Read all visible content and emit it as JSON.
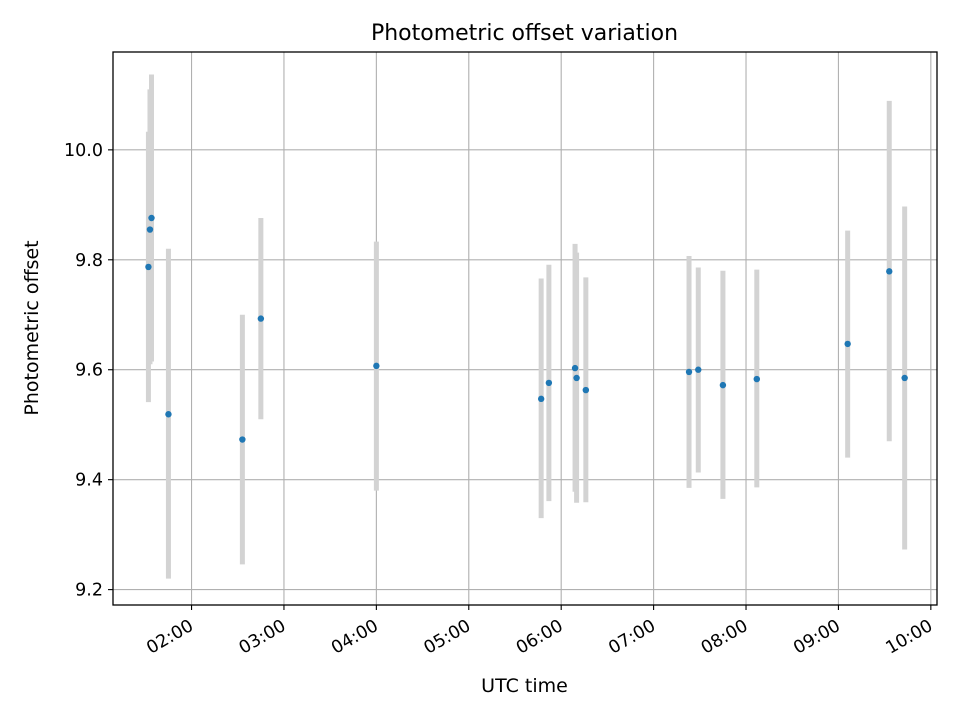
{
  "chart_data": {
    "type": "scatter",
    "title": "Photometric offset variation",
    "xlabel": "UTC time",
    "ylabel": "Photometric offset",
    "xlim": [
      "01:09",
      "10:04"
    ],
    "ylim": [
      9.172,
      10.178
    ],
    "x_ticks": [
      "02:00",
      "03:00",
      "04:00",
      "05:00",
      "06:00",
      "07:00",
      "08:00",
      "09:00",
      "10:00"
    ],
    "y_ticks": [
      "9.2",
      "9.4",
      "9.6",
      "9.8",
      "10.0"
    ],
    "grid": true,
    "point_color": "#1f77b4",
    "errorbar_color": "#d3d3d3",
    "points": [
      {
        "time": "01:32",
        "y": 9.787,
        "yerr_low": 9.541,
        "yerr_high": 10.033
      },
      {
        "time": "01:33",
        "y": 9.855,
        "yerr_low": 9.61,
        "yerr_high": 10.11
      },
      {
        "time": "01:34",
        "y": 9.876,
        "yerr_low": 9.615,
        "yerr_high": 10.137
      },
      {
        "time": "01:45",
        "y": 9.519,
        "yerr_low": 9.22,
        "yerr_high": 9.82
      },
      {
        "time": "02:33",
        "y": 9.473,
        "yerr_low": 9.246,
        "yerr_high": 9.7
      },
      {
        "time": "02:45",
        "y": 9.693,
        "yerr_low": 9.51,
        "yerr_high": 9.876
      },
      {
        "time": "04:00",
        "y": 9.607,
        "yerr_low": 9.38,
        "yerr_high": 9.833
      },
      {
        "time": "05:47",
        "y": 9.547,
        "yerr_low": 9.33,
        "yerr_high": 9.766
      },
      {
        "time": "05:52",
        "y": 9.576,
        "yerr_low": 9.361,
        "yerr_high": 9.791
      },
      {
        "time": "06:09",
        "y": 9.603,
        "yerr_low": 9.378,
        "yerr_high": 9.829
      },
      {
        "time": "06:10",
        "y": 9.585,
        "yerr_low": 9.358,
        "yerr_high": 9.813
      },
      {
        "time": "06:16",
        "y": 9.563,
        "yerr_low": 9.359,
        "yerr_high": 9.768
      },
      {
        "time": "07:23",
        "y": 9.596,
        "yerr_low": 9.385,
        "yerr_high": 9.807
      },
      {
        "time": "07:29",
        "y": 9.6,
        "yerr_low": 9.413,
        "yerr_high": 9.786
      },
      {
        "time": "07:45",
        "y": 9.572,
        "yerr_low": 9.365,
        "yerr_high": 9.78
      },
      {
        "time": "08:07",
        "y": 9.583,
        "yerr_low": 9.386,
        "yerr_high": 9.782
      },
      {
        "time": "09:06",
        "y": 9.647,
        "yerr_low": 9.44,
        "yerr_high": 9.853
      },
      {
        "time": "09:33",
        "y": 9.779,
        "yerr_low": 9.47,
        "yerr_high": 10.089
      },
      {
        "time": "09:43",
        "y": 9.585,
        "yerr_low": 9.273,
        "yerr_high": 9.897
      }
    ]
  }
}
